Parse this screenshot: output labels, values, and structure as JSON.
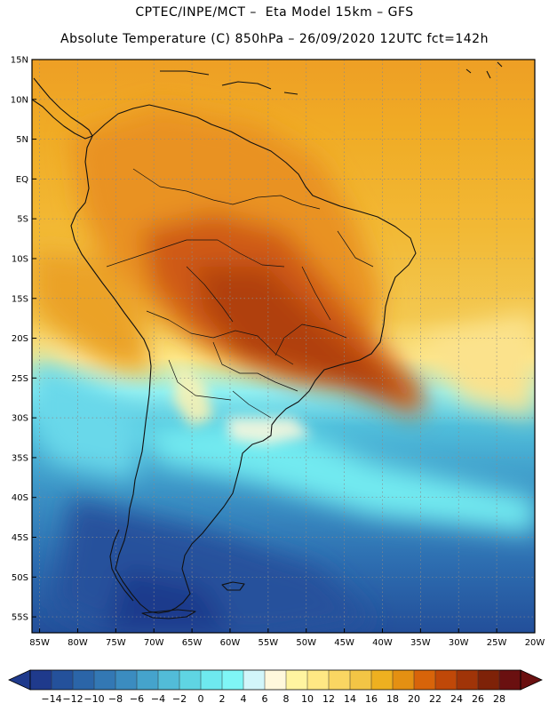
{
  "header": {
    "line1": "CPTEC/INPE/MCT –  Eta Model 15km – GFS",
    "line2": "Absolute Temperature (C) 850hPa – 26/09/2020 12UTC fct=142h"
  },
  "map": {
    "lat_labels": [
      "15N",
      "10N",
      "5N",
      "EQ",
      "5S",
      "10S",
      "15S",
      "20S",
      "25S",
      "30S",
      "35S",
      "40S",
      "45S",
      "50S",
      "55S"
    ],
    "lon_labels": [
      "85W",
      "80W",
      "75W",
      "70W",
      "65W",
      "60W",
      "55W",
      "50W",
      "45W",
      "40W",
      "35W",
      "30W",
      "25W",
      "20W"
    ],
    "lat_range": [
      15,
      -57
    ],
    "lon_range": [
      -86,
      -20
    ]
  },
  "colorbar": {
    "labels": [
      "-14",
      "-12",
      "-10",
      "-8",
      "-6",
      "-4",
      "-2",
      "0",
      "2",
      "4",
      "6",
      "8",
      "10",
      "12",
      "14",
      "16",
      "18",
      "20",
      "22",
      "24",
      "26",
      "28"
    ],
    "colors": [
      "#1f3a8c",
      "#24519b",
      "#2b65a8",
      "#3378b4",
      "#3b8cc0",
      "#45a3cc",
      "#52bcd8",
      "#5fd5e3",
      "#6ee9ef",
      "#7ff6f6",
      "#d2f6fa",
      "#fff8dc",
      "#fff4a0",
      "#ffe884",
      "#fad662",
      "#f3c545",
      "#eeb020",
      "#e49012",
      "#d8640a",
      "#c04808",
      "#a03408",
      "#7e2208",
      "#6a1010"
    ]
  }
}
